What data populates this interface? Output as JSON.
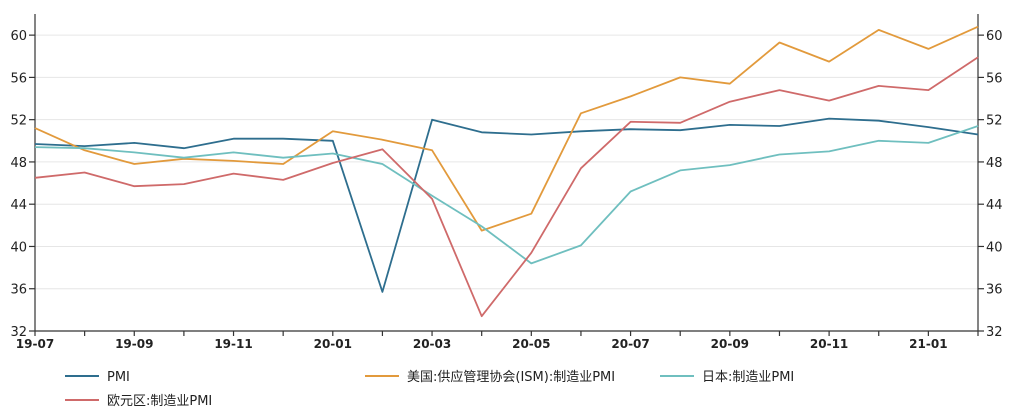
{
  "chart_data": {
    "type": "line",
    "x": [
      "19-07",
      "19-08",
      "19-09",
      "19-10",
      "19-11",
      "19-12",
      "20-01",
      "20-02",
      "20-03",
      "20-04",
      "20-05",
      "20-06",
      "20-07",
      "20-08",
      "20-09",
      "20-10",
      "20-11",
      "20-12",
      "21-01",
      "21-02"
    ],
    "x_tick_labels": [
      "19-07",
      "19-09",
      "19-11",
      "20-01",
      "20-03",
      "20-05",
      "20-07",
      "20-09",
      "20-11",
      "21-01"
    ],
    "ylim": [
      32,
      62
    ],
    "y_ticks": [
      32,
      36,
      40,
      44,
      48,
      52,
      56,
      60
    ],
    "grid": true,
    "legend_position": "bottom",
    "series": [
      {
        "name": "PMI",
        "color": "#2e6e8e",
        "values": [
          49.7,
          49.5,
          49.8,
          49.3,
          50.2,
          50.2,
          50.0,
          35.7,
          52.0,
          50.8,
          50.6,
          50.9,
          51.1,
          51.0,
          51.5,
          51.4,
          52.1,
          51.9,
          51.3,
          50.6
        ]
      },
      {
        "name": "美国:供应管理协会(ISM):制造业PMI",
        "color": "#e29a3c",
        "values": [
          51.2,
          49.1,
          47.8,
          48.3,
          48.1,
          47.8,
          50.9,
          50.1,
          49.1,
          41.5,
          43.1,
          52.6,
          54.2,
          56.0,
          55.4,
          59.3,
          57.5,
          60.5,
          58.7,
          60.8
        ]
      },
      {
        "name": "日本:制造业PMI",
        "color": "#6fbfbf",
        "values": [
          49.4,
          49.3,
          48.9,
          48.4,
          48.9,
          48.4,
          48.8,
          47.8,
          44.8,
          41.9,
          38.4,
          40.1,
          45.2,
          47.2,
          47.7,
          48.7,
          49.0,
          50.0,
          49.8,
          51.4
        ]
      },
      {
        "name": "欧元区:制造业PMI",
        "color": "#cf6a6a",
        "values": [
          46.5,
          47.0,
          45.7,
          45.9,
          46.9,
          46.3,
          47.9,
          49.2,
          44.5,
          33.4,
          39.4,
          47.4,
          51.8,
          51.7,
          53.7,
          54.8,
          53.8,
          55.2,
          54.8,
          57.9
        ]
      }
    ]
  }
}
